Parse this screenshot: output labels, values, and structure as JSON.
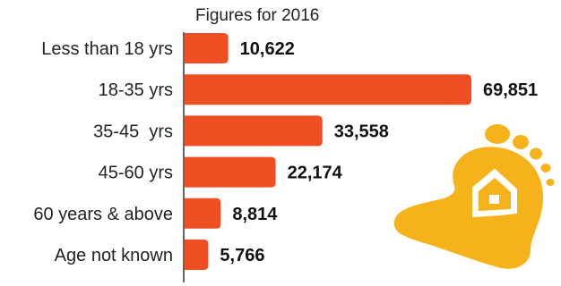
{
  "chart_data": {
    "type": "bar",
    "orientation": "horizontal",
    "title": "Figures for 2016",
    "categories": [
      "Less than 18 yrs",
      "18-35 yrs",
      "35-45  yrs",
      "45-60 yrs",
      "60 years & above",
      "Age not known"
    ],
    "values": [
      10622,
      69851,
      33558,
      22174,
      8814,
      5766
    ],
    "value_labels": [
      "10,622",
      "69,851",
      "33,558",
      "22,174",
      "8,814",
      "5,766"
    ],
    "xlim": [
      0,
      69851
    ],
    "grid": false,
    "legend": "none"
  },
  "colors": {
    "bar": "#f04e23",
    "footprint": "#f6b21a",
    "axis": "#333333"
  },
  "decoration": {
    "icon": "footprint-house-icon"
  }
}
